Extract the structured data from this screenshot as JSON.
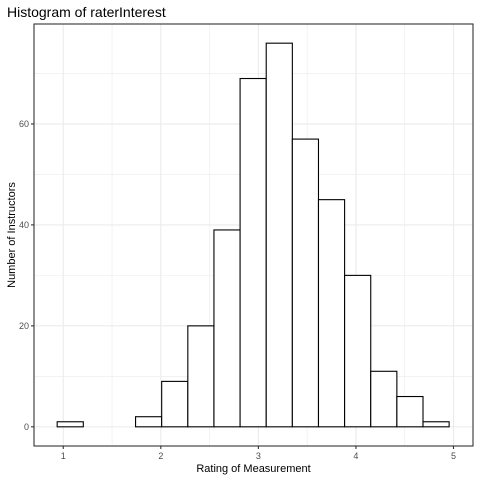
{
  "chart_data": {
    "type": "bar",
    "title": "Histogram of raterInterest",
    "xlabel": "Rating of Measurement",
    "ylabel": "Number of Instructors",
    "bins": [
      {
        "x0": 0.9375,
        "x1": 1.2054,
        "count": 1
      },
      {
        "x0": 1.2054,
        "x1": 1.4732,
        "count": 0
      },
      {
        "x0": 1.4732,
        "x1": 1.7411,
        "count": 0
      },
      {
        "x0": 1.7411,
        "x1": 2.0089,
        "count": 2
      },
      {
        "x0": 2.0089,
        "x1": 2.2768,
        "count": 9
      },
      {
        "x0": 2.2768,
        "x1": 2.5446,
        "count": 20
      },
      {
        "x0": 2.5446,
        "x1": 2.8125,
        "count": 39
      },
      {
        "x0": 2.8125,
        "x1": 3.0804,
        "count": 69
      },
      {
        "x0": 3.0804,
        "x1": 3.3482,
        "count": 76
      },
      {
        "x0": 3.3482,
        "x1": 3.6161,
        "count": 57
      },
      {
        "x0": 3.6161,
        "x1": 3.8839,
        "count": 45
      },
      {
        "x0": 3.8839,
        "x1": 4.1518,
        "count": 30
      },
      {
        "x0": 4.1518,
        "x1": 4.4196,
        "count": 11
      },
      {
        "x0": 4.4196,
        "x1": 4.6875,
        "count": 6
      },
      {
        "x0": 4.6875,
        "x1": 4.9554,
        "count": 1
      }
    ],
    "xticks": [
      1,
      2,
      3,
      4,
      5
    ],
    "yticks": [
      0,
      20,
      40,
      60
    ],
    "xlim": [
      0.7,
      5.2
    ],
    "ylim": [
      -3.8,
      79.8
    ],
    "grid": true,
    "legend": "none",
    "colors": {
      "bar_fill": "#ffffff",
      "bar_stroke": "#000000",
      "grid": "#ebebeb",
      "panel_border": "#333333",
      "tick_text": "#4d4d4d"
    }
  }
}
